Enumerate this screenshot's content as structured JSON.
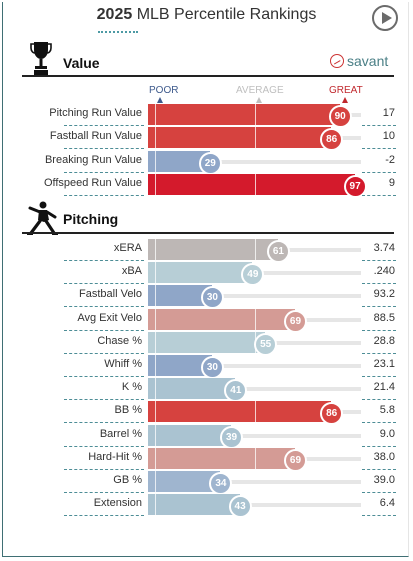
{
  "header": {
    "year": "2025",
    "title": "MLB Percentile Rankings"
  },
  "value_section": {
    "title": "Value",
    "brand": "savant",
    "scale": {
      "poor": "POOR",
      "average": "AVERAGE",
      "great": "GREAT"
    },
    "rows": [
      {
        "label": "Pitching Run Value",
        "percentile": 90,
        "value": "17",
        "color": "#d6423f"
      },
      {
        "label": "Fastball Run Value",
        "percentile": 86,
        "value": "10",
        "color": "#d6423f"
      },
      {
        "label": "Breaking Run Value",
        "percentile": 29,
        "value": "-2",
        "color": "#8fa6c8"
      },
      {
        "label": "Offspeed Run Value",
        "percentile": 97,
        "value": "9",
        "color": "#d41a2c"
      }
    ]
  },
  "pitching_section": {
    "title": "Pitching",
    "rows": [
      {
        "label": "xERA",
        "percentile": 61,
        "value": "3.74",
        "color": "#bdb7b5"
      },
      {
        "label": "xBA",
        "percentile": 49,
        "value": ".240",
        "color": "#b7ced6"
      },
      {
        "label": "Fastball Velo",
        "percentile": 30,
        "value": "93.2",
        "color": "#8fa6c8"
      },
      {
        "label": "Avg Exit Velo",
        "percentile": 69,
        "value": "88.5",
        "color": "#d49b95"
      },
      {
        "label": "Chase %",
        "percentile": 55,
        "value": "28.8",
        "color": "#b7ced6"
      },
      {
        "label": "Whiff %",
        "percentile": 30,
        "value": "23.1",
        "color": "#8fa6c8"
      },
      {
        "label": "K %",
        "percentile": 41,
        "value": "21.4",
        "color": "#aac3d1"
      },
      {
        "label": "BB %",
        "percentile": 86,
        "value": "5.8",
        "color": "#d6423f"
      },
      {
        "label": "Barrel %",
        "percentile": 39,
        "value": "9.0",
        "color": "#aac3d1"
      },
      {
        "label": "Hard-Hit %",
        "percentile": 69,
        "value": "38.0",
        "color": "#d49b95"
      },
      {
        "label": "GB %",
        "percentile": 34,
        "value": "39.0",
        "color": "#9fb5cf"
      },
      {
        "label": "Extension",
        "percentile": 43,
        "value": "6.4",
        "color": "#aac3d1"
      }
    ]
  }
}
